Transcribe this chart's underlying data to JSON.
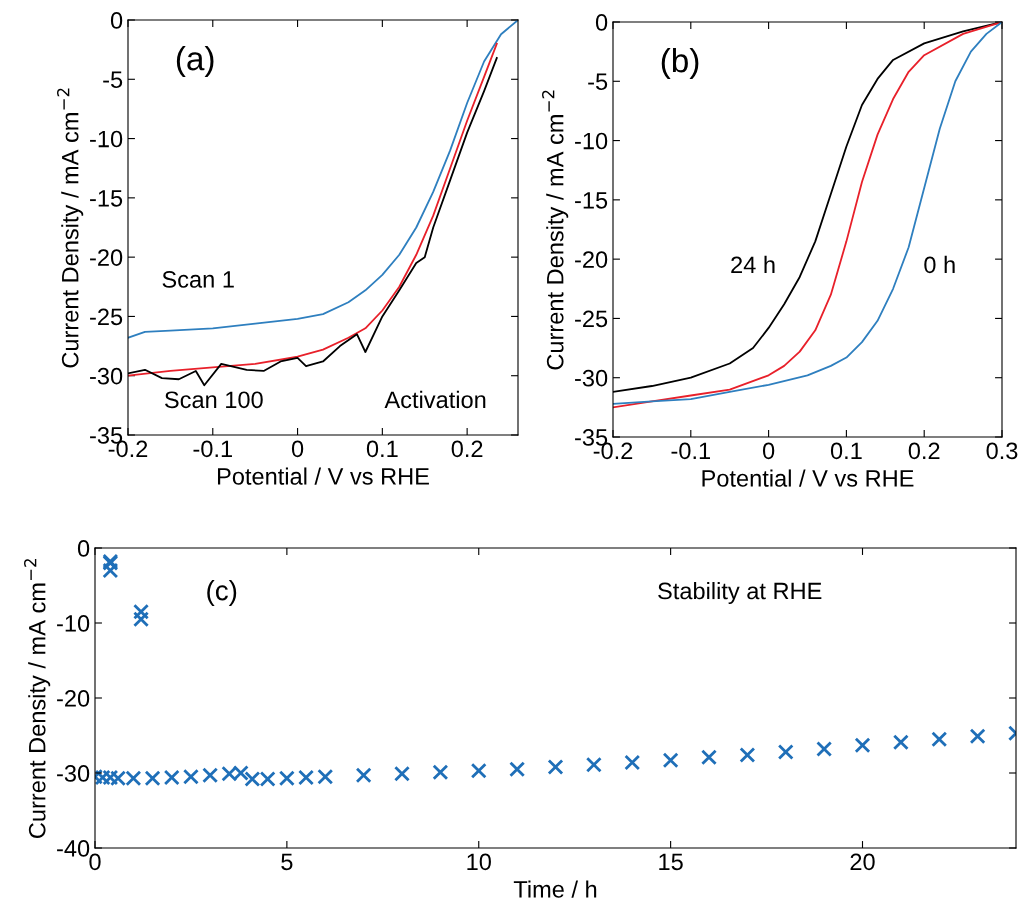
{
  "chart_data": [
    {
      "type": "line",
      "xlabel": "Potential / V vs RHE",
      "ylabel": "Current Density / mA cm$^{−2}$",
      "xlim": [
        -0.2,
        0.26
      ],
      "ylim": [
        -35,
        0
      ],
      "xticks": [
        -0.2,
        -0.1,
        0,
        0.1,
        0.2
      ],
      "yticks": [
        -35,
        -30,
        -25,
        -20,
        -15,
        -10,
        -5,
        0
      ],
      "annotations": [
        "(a)",
        "Scan 1",
        "Scan 100",
        "Activation"
      ],
      "series": [
        {
          "color": "#2e7fbf",
          "x": [
            -0.2,
            -0.18,
            -0.15,
            -0.1,
            -0.05,
            0,
            0.03,
            0.06,
            0.08,
            0.1,
            0.12,
            0.14,
            0.16,
            0.18,
            0.2,
            0.22,
            0.24,
            0.26
          ],
          "values": [
            -26.8,
            -26.3,
            -26.2,
            -26.0,
            -25.6,
            -25.2,
            -24.8,
            -23.8,
            -22.8,
            -21.5,
            -19.8,
            -17.5,
            -14.5,
            -11,
            -7,
            -3.5,
            -1.2,
            0
          ]
        },
        {
          "color": "#e8202a",
          "x": [
            -0.2,
            -0.15,
            -0.1,
            -0.05,
            0,
            0.03,
            0.06,
            0.08,
            0.1,
            0.12,
            0.14,
            0.16,
            0.18,
            0.2,
            0.22,
            0.235
          ],
          "values": [
            -30,
            -29.6,
            -29.3,
            -29.0,
            -28.4,
            -27.8,
            -26.8,
            -26.0,
            -24.5,
            -22.5,
            -19.8,
            -16.5,
            -12.5,
            -8.5,
            -4.8,
            -2.0
          ]
        },
        {
          "color": "#000000",
          "x": [
            -0.2,
            -0.18,
            -0.16,
            -0.14,
            -0.12,
            -0.11,
            -0.09,
            -0.06,
            -0.04,
            -0.02,
            0,
            0.01,
            0.03,
            0.05,
            0.07,
            0.08,
            0.1,
            0.12,
            0.14,
            0.15,
            0.16,
            0.18,
            0.2,
            0.22,
            0.235
          ],
          "values": [
            -29.8,
            -29.5,
            -30.2,
            -30.3,
            -29.6,
            -30.8,
            -29.0,
            -29.5,
            -29.6,
            -28.8,
            -28.5,
            -29.2,
            -28.8,
            -27.5,
            -26.5,
            -28.0,
            -25.0,
            -22.8,
            -20.5,
            -20.0,
            -17.5,
            -13.5,
            -9.5,
            -6.0,
            -3.2
          ]
        }
      ]
    },
    {
      "type": "line",
      "xlabel": "Potential / V vs RHE",
      "ylabel": "Current Density / mA cm$^{−2}$",
      "xlim": [
        -0.2,
        0.3
      ],
      "ylim": [
        -35,
        0
      ],
      "xticks": [
        -0.2,
        -0.1,
        0,
        0.1,
        0.2,
        0.3
      ],
      "yticks": [
        -35,
        -30,
        -25,
        -20,
        -15,
        -10,
        -5,
        0
      ],
      "annotations": [
        "(b)",
        "24 h",
        "0 h"
      ],
      "series": [
        {
          "color": "#000000",
          "x": [
            -0.2,
            -0.15,
            -0.1,
            -0.05,
            -0.02,
            0,
            0.02,
            0.04,
            0.06,
            0.08,
            0.1,
            0.12,
            0.14,
            0.16,
            0.2,
            0.25,
            0.3
          ],
          "values": [
            -31.2,
            -30.7,
            -30.0,
            -28.8,
            -27.5,
            -25.8,
            -23.8,
            -21.5,
            -18.5,
            -14.5,
            -10.5,
            -7.0,
            -4.8,
            -3.2,
            -1.8,
            -0.8,
            0
          ]
        },
        {
          "color": "#e8202a",
          "x": [
            -0.2,
            -0.15,
            -0.1,
            -0.05,
            0,
            0.02,
            0.04,
            0.06,
            0.08,
            0.1,
            0.12,
            0.14,
            0.16,
            0.18,
            0.2,
            0.25,
            0.3
          ],
          "values": [
            -32.5,
            -32.0,
            -31.5,
            -31.0,
            -29.8,
            -29.0,
            -27.8,
            -26.0,
            -23,
            -18.5,
            -13.5,
            -9.5,
            -6.5,
            -4.2,
            -2.8,
            -1.0,
            0
          ]
        },
        {
          "color": "#2e7fbf",
          "x": [
            -0.2,
            -0.15,
            -0.1,
            -0.05,
            0,
            0.05,
            0.08,
            0.1,
            0.12,
            0.14,
            0.16,
            0.18,
            0.2,
            0.22,
            0.24,
            0.26,
            0.28,
            0.3
          ],
          "values": [
            -32.2,
            -32.0,
            -31.8,
            -31.2,
            -30.6,
            -29.8,
            -29.0,
            -28.3,
            -27.0,
            -25.2,
            -22.5,
            -19.0,
            -14.0,
            -9.0,
            -5.0,
            -2.5,
            -1.0,
            0
          ]
        }
      ]
    },
    {
      "type": "scatter",
      "xlabel": "Time / h",
      "ylabel": "Current Density / mA cm$^{−2}$",
      "xlim": [
        0,
        24
      ],
      "ylim": [
        -40,
        0
      ],
      "xticks": [
        0,
        5,
        10,
        15,
        20
      ],
      "yticks": [
        -40,
        -30,
        -20,
        -10,
        0
      ],
      "marker": "cross",
      "annotations": [
        "(c)",
        "Stability at RHE"
      ],
      "series": [
        {
          "color": "#1f6fb8",
          "x": [
            0,
            0.2,
            0.4,
            0.4,
            0.4,
            0.4,
            0.6,
            1,
            1.2,
            1.2,
            1.5,
            2,
            2.5,
            3,
            3.5,
            3.8,
            4.1,
            4.5,
            5,
            5.5,
            6,
            7,
            8,
            9,
            10,
            11,
            12,
            13,
            14,
            15,
            16,
            17,
            18,
            19,
            20,
            21,
            22,
            23,
            24
          ],
          "values": [
            -30.5,
            -30.6,
            -30.6,
            -2,
            -3,
            -1.8,
            -30.7,
            -30.7,
            -8.5,
            -9.5,
            -30.7,
            -30.6,
            -30.5,
            -30.3,
            -30.1,
            -30.0,
            -30.8,
            -30.8,
            -30.7,
            -30.6,
            -30.5,
            -30.3,
            -30.1,
            -29.9,
            -29.7,
            -29.5,
            -29.2,
            -28.9,
            -28.6,
            -28.3,
            -27.9,
            -27.6,
            -27.2,
            -26.8,
            -26.3,
            -25.9,
            -25.5,
            -25.1,
            -24.7
          ]
        }
      ]
    }
  ]
}
